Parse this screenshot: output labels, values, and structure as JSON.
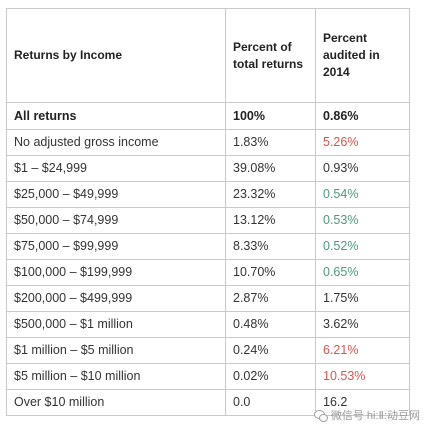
{
  "table": {
    "headers": {
      "col1": "Returns by Income",
      "col2": "Percent of total returns",
      "col3": "Percent audited in 2014"
    },
    "rows": [
      {
        "income": "All returns",
        "percent_returns": "100%",
        "percent_audited": "0.86%",
        "audited_color": "black",
        "bold": true
      },
      {
        "income": "No adjusted gross income",
        "percent_returns": "1.83%",
        "percent_audited": "5.26%",
        "audited_color": "red"
      },
      {
        "income": "$1 – $24,999",
        "percent_returns": "39.08%",
        "percent_audited": "0.93%",
        "audited_color": "black"
      },
      {
        "income": "$25,000 – $49,999",
        "percent_returns": "23.32%",
        "percent_audited": "0.54%",
        "audited_color": "green"
      },
      {
        "income": "$50,000 – $74,999",
        "percent_returns": "13.12%",
        "percent_audited": "0.53%",
        "audited_color": "green"
      },
      {
        "income": "$75,000 – $99,999",
        "percent_returns": "8.33%",
        "percent_audited": "0.52%",
        "audited_color": "green"
      },
      {
        "income": "$100,000 – $199,999",
        "percent_returns": "10.70%",
        "percent_audited": "0.65%",
        "audited_color": "green"
      },
      {
        "income": "$200,000 – $499,999",
        "percent_returns": "2.87%",
        "percent_audited": "1.75%",
        "audited_color": "black"
      },
      {
        "income": "$500,000 – $1 million",
        "percent_returns": "0.48%",
        "percent_audited": "3.62%",
        "audited_color": "black"
      },
      {
        "income": "$1 million – $5 million",
        "percent_returns": "0.24%",
        "percent_audited": "6.21%",
        "audited_color": "red"
      },
      {
        "income": "$5 million – $10 million",
        "percent_returns": "0.02%",
        "percent_audited": "10.53%",
        "audited_color": "red"
      },
      {
        "income": "Over $10 million",
        "percent_returns": "0.0",
        "percent_audited": "16.2",
        "audited_color": "black"
      }
    ]
  },
  "watermark": {
    "text": "微信号 hi:Ⅱ:动豆网"
  },
  "colors": {
    "red": "#d9534f",
    "green": "#4a9a7a",
    "border": "#c9c9c9"
  }
}
